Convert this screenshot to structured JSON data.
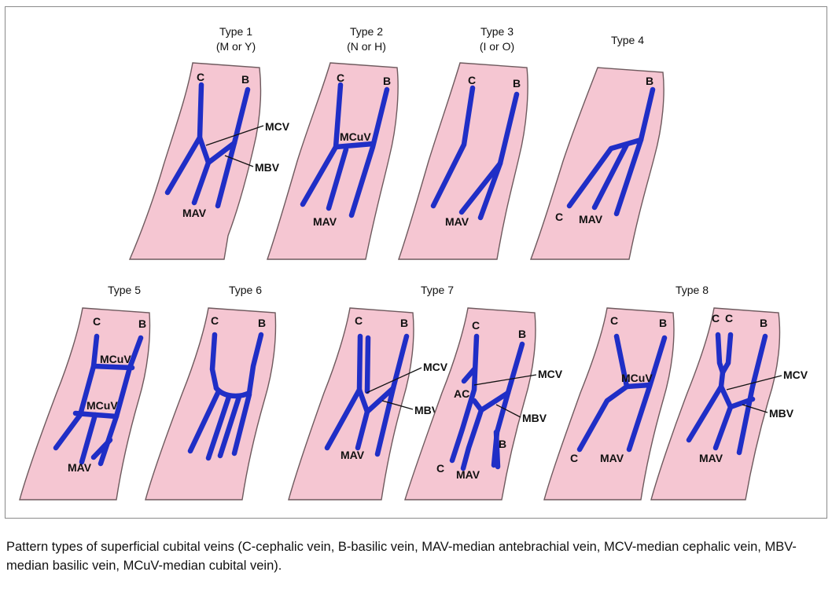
{
  "types": [
    {
      "title": "Type 1",
      "subtitle": "(M or Y)"
    },
    {
      "title": "Type 2",
      "subtitle": "(N or H)"
    },
    {
      "title": "Type 3",
      "subtitle": "(I or O)"
    },
    {
      "title": "Type 4",
      "subtitle": ""
    },
    {
      "title": "Type 5",
      "subtitle": ""
    },
    {
      "title": "Type 6",
      "subtitle": ""
    },
    {
      "title": "Type 7",
      "subtitle": ""
    },
    {
      "title": "Type 8",
      "subtitle": ""
    }
  ],
  "labels": {
    "C": "C",
    "B": "B",
    "MCV": "MCV",
    "MBV": "MBV",
    "MAV": "MAV",
    "MCuV": "MCuV",
    "AC": "AC"
  },
  "colors": {
    "vein": "#1f2ec6",
    "skin": "#f5c6d2",
    "outline": "#6e5a5e"
  },
  "caption": "Pattern types of superficial cubital veins (C-cephalic vein, B-basilic vein, MAV-median antebrachial vein, MCV-median cephalic vein, MBV-median basilic vein, MCuV-median cubital vein)."
}
